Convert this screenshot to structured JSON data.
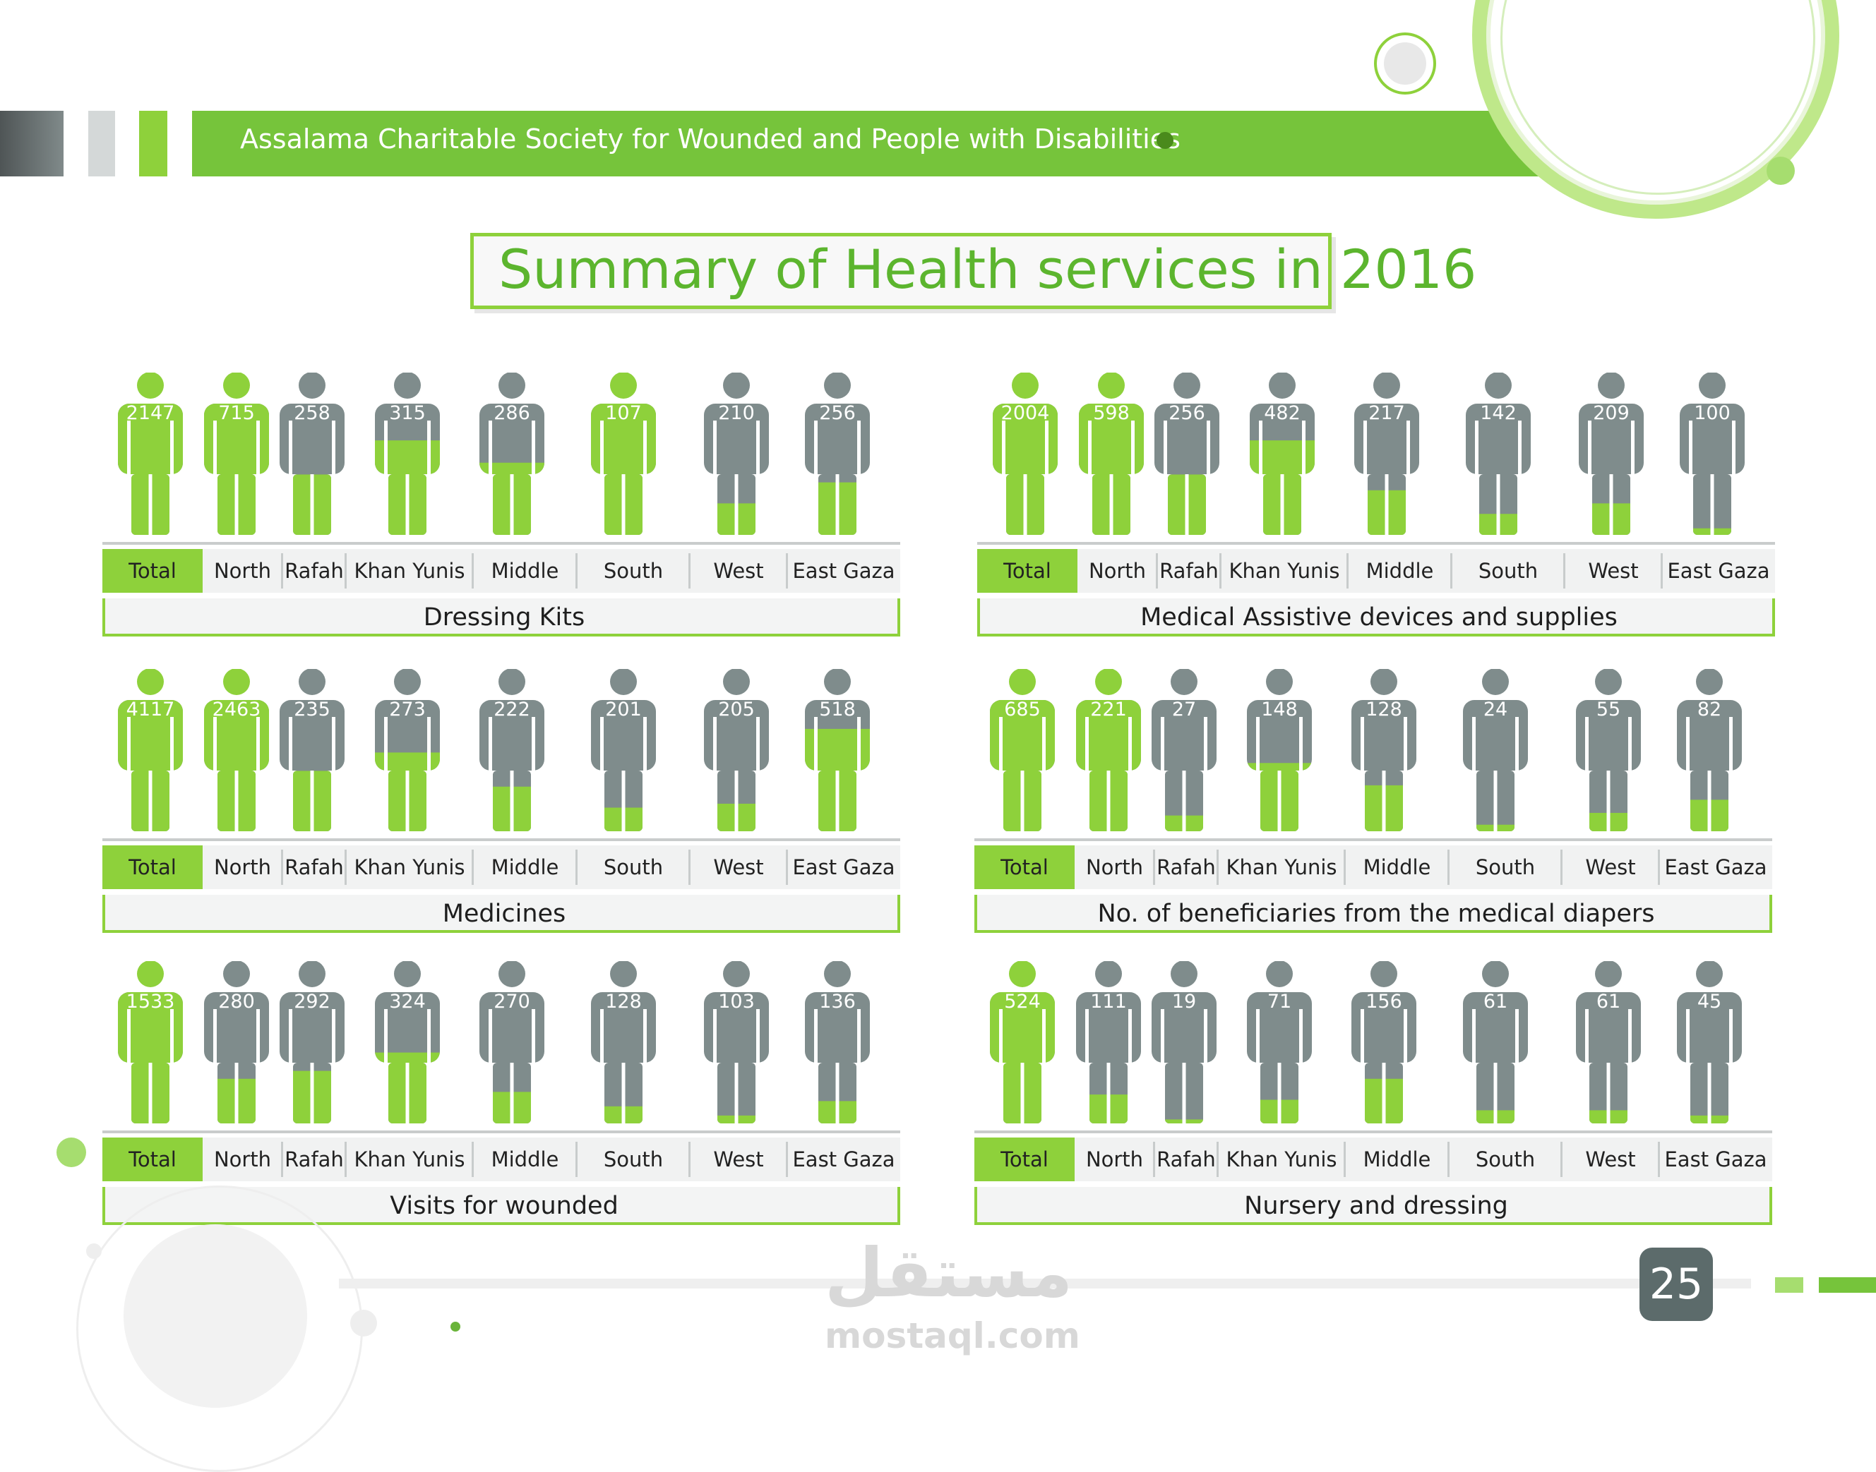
{
  "header": {
    "title": "Assalama Charitable Society for Wounded and People with Disabilities"
  },
  "page_number": "25",
  "watermark": {
    "arabic": "مستقل",
    "latin": "mostaql.com"
  },
  "colors": {
    "green": "#8ed13b",
    "grey": "#7f8c8c",
    "accent": "#5cb52e"
  },
  "chart_data": [
    {
      "type": "bar",
      "title": "Summary of Health services in 2016",
      "caption": "Dressing Kits",
      "categories": [
        "Total",
        "North",
        "Rafah",
        "Khan Yunis",
        "Middle",
        "South",
        "West",
        "East Gaza"
      ],
      "values": [
        2147,
        715,
        258,
        315,
        286,
        107,
        210,
        256
      ],
      "fill_fraction": [
        1.0,
        1.0,
        0.46,
        0.72,
        0.55,
        1.0,
        0.24,
        0.4
      ]
    },
    {
      "type": "bar",
      "caption": "Medical Assistive devices and supplies",
      "categories": [
        "Total",
        "North",
        "Rafah",
        "Khan Yunis",
        "Middle",
        "South",
        "West",
        "East Gaza"
      ],
      "values": [
        2004,
        598,
        256,
        482,
        217,
        142,
        209,
        100
      ],
      "fill_fraction": [
        1.0,
        1.0,
        0.46,
        0.72,
        0.34,
        0.16,
        0.24,
        0.05
      ]
    },
    {
      "type": "bar",
      "caption": "Medicines",
      "categories": [
        "Total",
        "North",
        "Rafah",
        "Khan Yunis",
        "Middle",
        "South",
        "West",
        "East Gaza"
      ],
      "values": [
        4117,
        2463,
        235,
        273,
        222,
        201,
        205,
        518
      ],
      "fill_fraction": [
        1.0,
        1.0,
        0.46,
        0.6,
        0.34,
        0.18,
        0.21,
        0.78
      ]
    },
    {
      "type": "bar",
      "caption": "No. of beneficiaries from the medical diapers",
      "categories": [
        "Total",
        "North",
        "Rafah",
        "Khan Yunis",
        "Middle",
        "South",
        "West",
        "East Gaza"
      ],
      "values": [
        685,
        221,
        27,
        148,
        128,
        24,
        55,
        82
      ],
      "fill_fraction": [
        1.0,
        1.0,
        0.12,
        0.52,
        0.35,
        0.05,
        0.14,
        0.24
      ]
    },
    {
      "type": "bar",
      "caption": "Visits for wounded",
      "categories": [
        "Total",
        "North",
        "Rafah",
        "Khan Yunis",
        "Middle",
        "South",
        "West",
        "East Gaza"
      ],
      "values": [
        1533,
        280,
        292,
        324,
        270,
        128,
        103,
        136
      ],
      "fill_fraction": [
        1.0,
        0.34,
        0.4,
        0.54,
        0.24,
        0.13,
        0.06,
        0.17
      ]
    },
    {
      "type": "bar",
      "caption": "Nursery and dressing",
      "categories": [
        "Total",
        "North",
        "Rafah",
        "Khan Yunis",
        "Middle",
        "South",
        "West",
        "East Gaza"
      ],
      "values": [
        524,
        111,
        19,
        71,
        156,
        61,
        61,
        45
      ],
      "fill_fraction": [
        1.0,
        0.22,
        0.03,
        0.18,
        0.34,
        0.1,
        0.1,
        0.06
      ]
    }
  ]
}
